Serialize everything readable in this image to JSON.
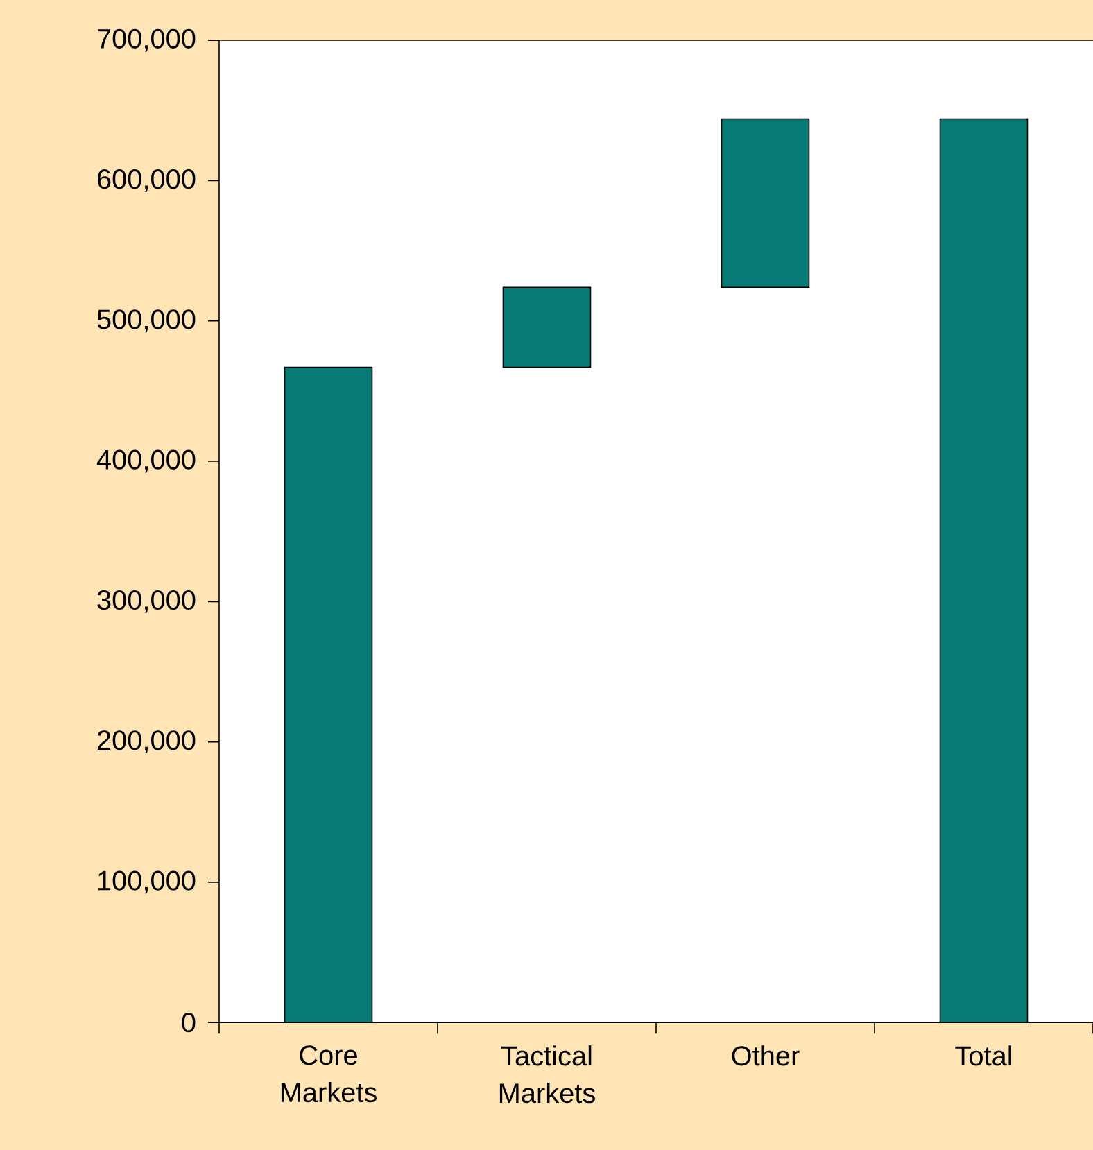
{
  "chart_data": {
    "type": "bar",
    "categories": [
      "Core Markets",
      "Tactical Markets",
      "Other",
      "Total"
    ],
    "values": [
      467000,
      57000,
      120000,
      644000
    ],
    "base": [
      0,
      467000,
      524000,
      0
    ],
    "color": "#087b76",
    "ylim": [
      0,
      700000
    ],
    "yticks": [
      0,
      {
        "value": 100000,
        "label": "100,000"
      },
      {
        "value": 200000,
        "label": "200,000"
      },
      {
        "value": 300000,
        "label": "300,000"
      },
      {
        "value": 400000,
        "label": "400,000"
      },
      {
        "value": 500000,
        "label": "500,000"
      },
      {
        "value": 600000,
        "label": "600,000"
      },
      {
        "value": 700000,
        "label": "700,000"
      }
    ],
    "grid": false
  }
}
